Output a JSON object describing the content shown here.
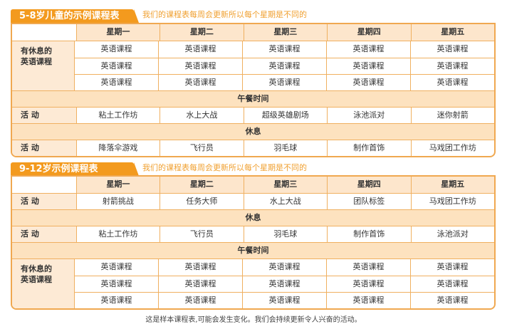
{
  "days": [
    "星期一",
    "星期二",
    "星期三",
    "星期四",
    "星期五"
  ],
  "note": "我们的课程表每周会更新所以每个星期是不同的",
  "table1": {
    "title": "5-8岁儿童的示例课程表",
    "sections": [
      {
        "type": "group",
        "label": "有休息的\n英语课程",
        "rows": [
          [
            "英语课程",
            "英语课程",
            "英语课程",
            "英语课程",
            "英语课程"
          ],
          [
            "英语课程",
            "英语课程",
            "英语课程",
            "英语课程",
            "英语课程"
          ],
          [
            "英语课程",
            "英语课程",
            "英语课程",
            "英语课程",
            "英语课程"
          ]
        ]
      },
      {
        "type": "full",
        "label": "午餐时间"
      },
      {
        "type": "row",
        "label": "活  动",
        "cells": [
          "粘土工作坊",
          "水上大战",
          "超级英雄剧场",
          "泳池派对",
          "迷你射箭"
        ]
      },
      {
        "type": "full",
        "label": "休息"
      },
      {
        "type": "row",
        "label": "活  动",
        "cells": [
          "降落伞游戏",
          "飞行员",
          "羽毛球",
          "制作首饰",
          "马戏团工作坊"
        ]
      }
    ]
  },
  "table2": {
    "title": "9-12岁示例课程表",
    "sections": [
      {
        "type": "row",
        "label": "活  动",
        "cells": [
          "射箭挑战",
          "任务大师",
          "水上大战",
          "团队标签",
          "马戏团工作坊"
        ]
      },
      {
        "type": "full",
        "label": "休息"
      },
      {
        "type": "row",
        "label": "活  动",
        "cells": [
          "粘土工作坊",
          "飞行员",
          "羽毛球",
          "制作首饰",
          "泳池派对"
        ]
      },
      {
        "type": "full",
        "label": "午餐时间"
      },
      {
        "type": "group",
        "label": "有休息的\n英语课程",
        "rows": [
          [
            "英语课程",
            "英语课程",
            "英语课程",
            "英语课程",
            "英语课程"
          ],
          [
            "英语课程",
            "英语课程",
            "英语课程",
            "英语课程",
            "英语课程"
          ],
          [
            "英语课程",
            "英语课程",
            "英语课程",
            "英语课程",
            "英语课程"
          ]
        ]
      }
    ]
  },
  "footer": "这是样本课程表,可能会发生变化。我们会持续更新令人兴奋的活动。",
  "colors": {
    "accent": "#f39a1e",
    "header": "#fde6cc",
    "band": "#fde2bf",
    "border": "#f0b060"
  }
}
